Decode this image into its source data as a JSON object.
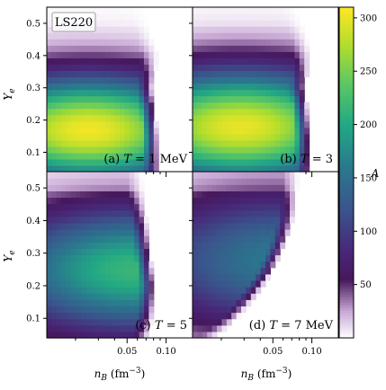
{
  "chart_data": {
    "type": "heatmap",
    "model_label": "LS220",
    "colorbar": {
      "label": "A",
      "range": [
        0,
        310
      ],
      "ticks": [
        50,
        100,
        150,
        200,
        250,
        300
      ],
      "tick_labels": [
        "50",
        "100",
        "150",
        "200",
        "250",
        "300"
      ],
      "colormap": "viridis with white-to-purple low end",
      "color_stops": [
        {
          "v": 0,
          "c": "#ffffff"
        },
        {
          "v": 25,
          "c": "#c9a9d6"
        },
        {
          "v": 55,
          "c": "#46185c"
        },
        {
          "v": 80,
          "c": "#482677"
        },
        {
          "v": 120,
          "c": "#3a548c"
        },
        {
          "v": 160,
          "c": "#2a788e"
        },
        {
          "v": 200,
          "c": "#22a884"
        },
        {
          "v": 240,
          "c": "#5ec962"
        },
        {
          "v": 275,
          "c": "#b2dd2d"
        },
        {
          "v": 310,
          "c": "#fde725"
        }
      ]
    },
    "x_axis": {
      "label_main": "n",
      "label_sub": "B",
      "label_unit": " (fm",
      "label_exp": "−3",
      "label_close": ")",
      "scale": "log",
      "range": [
        0.012,
        0.16
      ],
      "major_ticks": [
        0.05,
        0.1
      ],
      "tick_labels": [
        "0.05",
        "0.10"
      ],
      "minor_ticks": [
        0.02,
        0.03,
        0.04,
        0.06,
        0.07,
        0.08,
        0.09
      ]
    },
    "y_axis": {
      "label_main": "Y",
      "label_sub": "e",
      "range": [
        0.04,
        0.55
      ],
      "ticks": [
        0.1,
        0.2,
        0.3,
        0.4,
        0.5
      ],
      "tick_labels": [
        "0.1",
        "0.2",
        "0.3",
        "0.4",
        "0.5"
      ]
    },
    "panels": [
      {
        "id": "a",
        "label_prefix": "(a) ",
        "label_var": "T",
        "label_suffix": " = 1 MeV",
        "peak": 305,
        "peak_x": 0.025,
        "peak_y": 0.17,
        "sx": 1.0,
        "sy": 0.17,
        "edge_nb": [
          0.085,
          0.083,
          0.082,
          0.08,
          0.078,
          0.075,
          0.08,
          0.082,
          0.075,
          0.07,
          0.068
        ],
        "edge_ye": [
          0.05,
          0.1,
          0.15,
          0.2,
          0.25,
          0.3,
          0.35,
          0.4,
          0.45,
          0.5,
          0.55
        ]
      },
      {
        "id": "b",
        "label_prefix": "(b) ",
        "label_var": "T",
        "label_suffix": " = 3",
        "peak": 300,
        "peak_x": 0.028,
        "peak_y": 0.18,
        "sx": 1.05,
        "sy": 0.18,
        "edge_nb": [
          0.095,
          0.093,
          0.092,
          0.09,
          0.088,
          0.085,
          0.09,
          0.092,
          0.088,
          0.08,
          0.075
        ],
        "edge_ye": [
          0.05,
          0.1,
          0.15,
          0.2,
          0.25,
          0.3,
          0.35,
          0.4,
          0.45,
          0.5,
          0.55
        ]
      },
      {
        "id": "c",
        "label_prefix": "(c) ",
        "label_var": "T",
        "label_suffix": " = 5",
        "peak": 215,
        "peak_x": 0.055,
        "peak_y": 0.25,
        "sx": 1.1,
        "sy": 0.2,
        "edge_nb": [
          0.07,
          0.075,
          0.077,
          0.078,
          0.075,
          0.072,
          0.07,
          0.068,
          0.065,
          0.063,
          0.062
        ],
        "edge_ye": [
          0.05,
          0.1,
          0.15,
          0.2,
          0.25,
          0.3,
          0.35,
          0.4,
          0.45,
          0.5,
          0.55
        ]
      },
      {
        "id": "d",
        "label_prefix": "(d) ",
        "label_var": "T",
        "label_suffix": " = 7 MeV",
        "peak": 160,
        "peak_x": 0.06,
        "peak_y": 0.28,
        "sx": 1.2,
        "sy": 0.22,
        "edge_nb": [
          0.018,
          0.025,
          0.032,
          0.04,
          0.048,
          0.055,
          0.062,
          0.068,
          0.072,
          0.074,
          0.075
        ],
        "edge_ye": [
          0.05,
          0.1,
          0.15,
          0.2,
          0.25,
          0.3,
          0.35,
          0.4,
          0.45,
          0.5,
          0.55
        ]
      }
    ]
  }
}
